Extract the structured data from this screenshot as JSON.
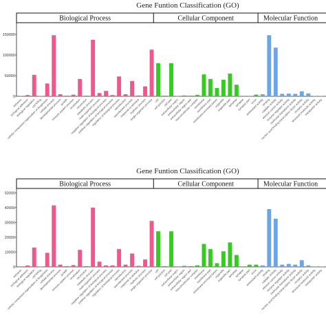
{
  "colors": {
    "bio": "#f0578a",
    "cell": "#33cc1f",
    "mol": "#6aa6e8"
  },
  "group_labels": [
    "Biological Process",
    "Cellular Component",
    "Molecular Function"
  ],
  "chart_data": [
    {
      "type": "bar",
      "title": "Gene Funtion Classification (GO)",
      "ylim": [
        0,
        175000
      ],
      "yticks": [
        0,
        50000,
        100000,
        150000
      ],
      "ytick_labels": [
        "0",
        "50000",
        "100000",
        "150000"
      ],
      "grid": false,
      "groups": [
        {
          "name": "Biological Process",
          "color": "#f0578a",
          "start": 0,
          "count": 21
        },
        {
          "name": "Cellular Component",
          "color": "#33cc1f",
          "start": 21,
          "count": 16
        },
        {
          "name": "Molecular Function",
          "color": "#6aa6e8",
          "start": 37,
          "count": 10
        }
      ],
      "categories": [
        "behavior",
        "biological adhesion",
        "biological regulation",
        "cell killing",
        "cellular component organization or biogenesis",
        "cellular process",
        "developmental process",
        "growth",
        "immune system process",
        "localization",
        "locomotion",
        "metabolic process",
        "multi-organism process",
        "negative regulation of biological process",
        "positive regulation of biological process",
        "regulation of biological process",
        "reproduction",
        "reproductive process",
        "response to stimulus",
        "rhythmic process",
        "single-organism process",
        "cell",
        "cell junction",
        "cell part",
        "extracellular matrix",
        "extracellular region",
        "extracellular region part",
        "macromolecular complex",
        "membrane",
        "membrane part",
        "membrane-enclosed lumen",
        "organelle",
        "organelle part",
        "symplast",
        "synapse",
        "synapse part",
        "virion",
        "antioxidant activity",
        "binding",
        "catalytic activity",
        "electron carrier activity",
        "enzyme regulator activity",
        "molecular transducer activity",
        "nucleic acid binding transcription factor activity",
        "receptor activity",
        "structural molecule activity",
        "transporter activity"
      ],
      "values": [
        1000,
        3000,
        52000,
        500,
        31000,
        148000,
        5000,
        1500,
        4000,
        42000,
        1500,
        137000,
        8000,
        13000,
        3000,
        48000,
        5000,
        37000,
        2000,
        24000,
        113000,
        80000,
        1500,
        80000,
        600,
        2000,
        1500,
        3500,
        53000,
        42000,
        20000,
        40000,
        55000,
        28000,
        1000,
        1000,
        4000,
        5000,
        148000,
        118000,
        6000,
        6500,
        6000,
        12000,
        7000,
        1000,
        1000
      ]
    },
    {
      "type": "bar",
      "title": "Gene Funtion Classification (GO)",
      "ylim": [
        0,
        52000
      ],
      "yticks": [
        0,
        10000,
        20000,
        30000,
        40000,
        50000
      ],
      "ytick_labels": [
        "0",
        "10000",
        "20000",
        "30000",
        "40000",
        "50000"
      ],
      "grid": false,
      "groups": [
        {
          "name": "Biological Process",
          "color": "#f0578a",
          "start": 0,
          "count": 21
        },
        {
          "name": "Cellular Component",
          "color": "#33cc1f",
          "start": 21,
          "count": 16
        },
        {
          "name": "Molecular Function",
          "color": "#6aa6e8",
          "start": 37,
          "count": 10
        }
      ],
      "categories": [
        "behavior",
        "biological adhesion",
        "biological regulation",
        "cell killing",
        "cellular component organization or biogenesis",
        "cellular process",
        "developmental process",
        "growth",
        "immune system process",
        "localization",
        "locomotion",
        "metabolic process",
        "multi-organism process",
        "negative regulation of biological process",
        "positive regulation of biological process",
        "regulation of biological process",
        "reproduction",
        "reproductive process",
        "response to stimulus",
        "rhythmic process",
        "single-organism process",
        "cell",
        "cell junction",
        "cell part",
        "extracellular matrix",
        "extracellular region",
        "extracellular region part",
        "macromolecular complex",
        "membrane",
        "membrane part",
        "membrane-enclosed lumen",
        "organelle",
        "organelle part",
        "symplast",
        "synapse",
        "synapse part",
        "virion",
        "antioxidant activity",
        "binding",
        "catalytic activity",
        "electron carrier activity",
        "enzyme regulator activity",
        "molecular transducer activity",
        "nucleic acid binding transcription factor activity",
        "receptor activity",
        "structural molecule activity",
        "transporter activity"
      ],
      "values": [
        300,
        900,
        13000,
        200,
        9500,
        41500,
        1500,
        500,
        1200,
        11500,
        500,
        40000,
        3500,
        1000,
        1000,
        12000,
        1500,
        9000,
        700,
        5000,
        31000,
        24000,
        500,
        24000,
        300,
        700,
        500,
        1000,
        15500,
        12000,
        2500,
        10500,
        16500,
        8000,
        300,
        1500,
        1500,
        1000,
        39000,
        32500,
        1500,
        2000,
        1500,
        4500,
        1000,
        300,
        300
      ]
    }
  ]
}
